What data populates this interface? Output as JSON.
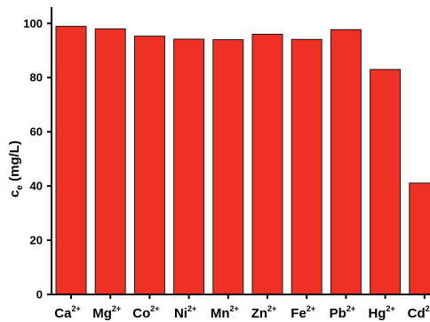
{
  "chart_data": {
    "type": "bar",
    "categories": [
      {
        "base": "Ca",
        "sup": "2+"
      },
      {
        "base": "Mg",
        "sup": "2+"
      },
      {
        "base": "Co",
        "sup": "2+"
      },
      {
        "base": "Ni",
        "sup": "2+"
      },
      {
        "base": "Mn",
        "sup": "2+"
      },
      {
        "base": "Zn",
        "sup": "2+"
      },
      {
        "base": "Fe",
        "sup": "2+"
      },
      {
        "base": "Pb",
        "sup": "2+"
      },
      {
        "base": "Hg",
        "sup": "2+"
      },
      {
        "base": "Cd",
        "sup": "2+"
      }
    ],
    "values": [
      98.9,
      98.0,
      95.3,
      94.2,
      94.0,
      96.0,
      94.1,
      97.7,
      83.0,
      41.1
    ],
    "ylabel": {
      "main": "c",
      "sub": "e",
      "rest": " (mg/L)"
    },
    "yticks": [
      0,
      20,
      40,
      60,
      80,
      100
    ],
    "ylim": [
      0,
      106
    ],
    "grid": false,
    "bar_color": "#ee3124",
    "bar_edge_color": "#1a1a1a"
  }
}
